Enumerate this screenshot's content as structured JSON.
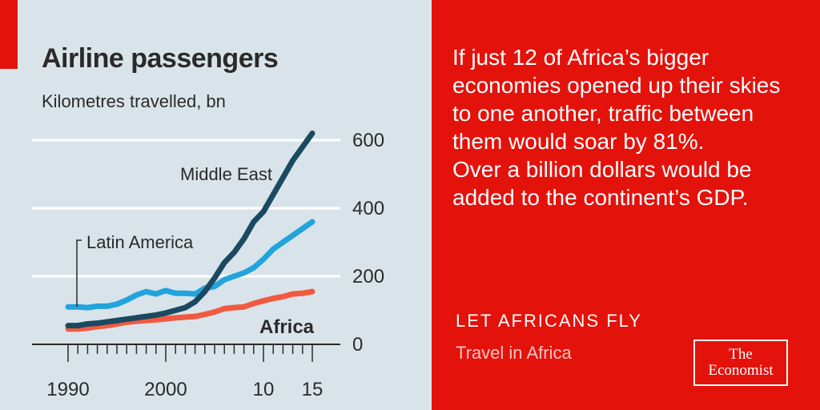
{
  "chart_data": {
    "type": "line",
    "title": "Airline passengers",
    "subtitle": "Kilometres travelled, bn",
    "x": [
      1990,
      1991,
      1992,
      1993,
      1994,
      1995,
      1996,
      1997,
      1998,
      1999,
      2000,
      2001,
      2002,
      2003,
      2004,
      2005,
      2006,
      2007,
      2008,
      2009,
      2010,
      2011,
      2012,
      2013,
      2014,
      2015
    ],
    "x_ticks": [
      "1990",
      "2000",
      "10",
      "15"
    ],
    "y_ticks": [
      "600",
      "400",
      "200",
      "0"
    ],
    "ylim": [
      0,
      650
    ],
    "series": [
      {
        "name": "Middle East",
        "color": "#1b4a60",
        "values": [
          55,
          55,
          60,
          62,
          66,
          70,
          74,
          78,
          82,
          86,
          92,
          100,
          108,
          125,
          155,
          195,
          240,
          270,
          310,
          360,
          390,
          440,
          490,
          540,
          580,
          620
        ]
      },
      {
        "name": "Latin America",
        "color": "#21a4dc",
        "values": [
          110,
          110,
          108,
          112,
          112,
          118,
          130,
          145,
          155,
          148,
          158,
          150,
          150,
          148,
          165,
          170,
          190,
          200,
          210,
          225,
          250,
          280,
          300,
          320,
          340,
          360
        ]
      },
      {
        "name": "Africa",
        "color": "#f15a40",
        "values": [
          45,
          45,
          48,
          52,
          55,
          60,
          65,
          68,
          70,
          72,
          75,
          78,
          80,
          82,
          88,
          95,
          105,
          108,
          110,
          120,
          128,
          135,
          140,
          148,
          150,
          155
        ]
      }
    ],
    "grid": true
  },
  "message": {
    "line1": "If just 12 of Africa’s bigger economies opened up their skies to one another, traffic between them would soar by 81%.",
    "line2": "Over a billion dollars would be added to the continent’s GDP."
  },
  "kicker": "LET AFRICANS FLY",
  "section": "Travel in Africa",
  "logo": {
    "line1": "The",
    "line2": "Economist"
  }
}
